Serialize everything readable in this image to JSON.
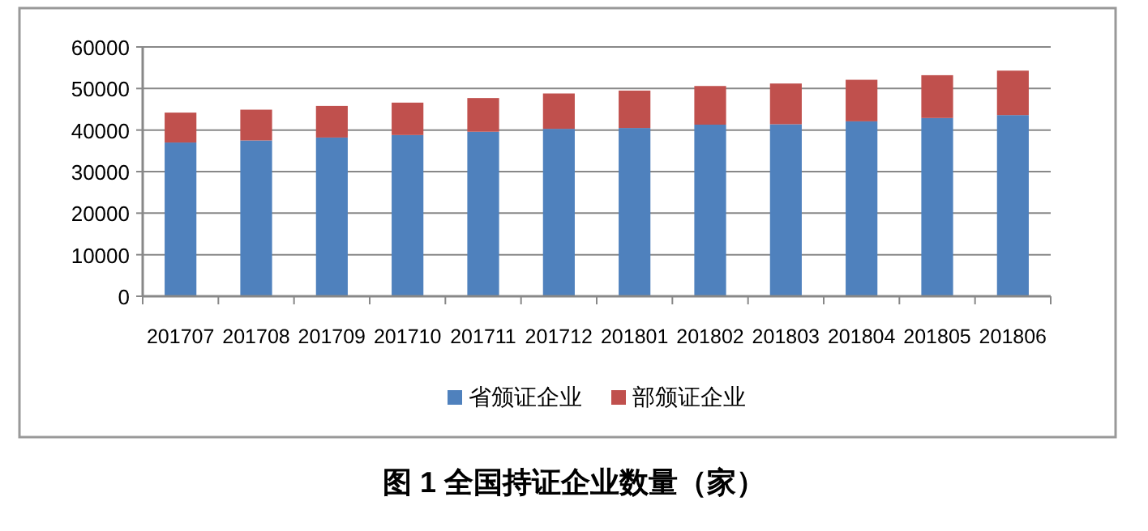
{
  "chart_data": {
    "type": "bar",
    "stacked": true,
    "title": "图 1  全国持证企业数量（家）",
    "categories": [
      "201707",
      "201708",
      "201709",
      "201710",
      "201711",
      "201712",
      "201801",
      "201802",
      "201803",
      "201804",
      "201805",
      "201806"
    ],
    "series": [
      {
        "name": "省颁证企业",
        "color": "#4f81bd",
        "values": [
          37000,
          37500,
          38200,
          38800,
          39600,
          40300,
          40500,
          41300,
          41400,
          42100,
          42900,
          43600
        ]
      },
      {
        "name": "部颁证企业",
        "color": "#c0504d",
        "values": [
          7200,
          7400,
          7600,
          7800,
          8100,
          8500,
          9000,
          9300,
          9800,
          10000,
          10300,
          10700
        ]
      }
    ],
    "ylim": [
      0,
      60000
    ],
    "yticks": [
      0,
      10000,
      20000,
      30000,
      40000,
      50000,
      60000
    ],
    "grid": "y",
    "legend": "bottom"
  }
}
